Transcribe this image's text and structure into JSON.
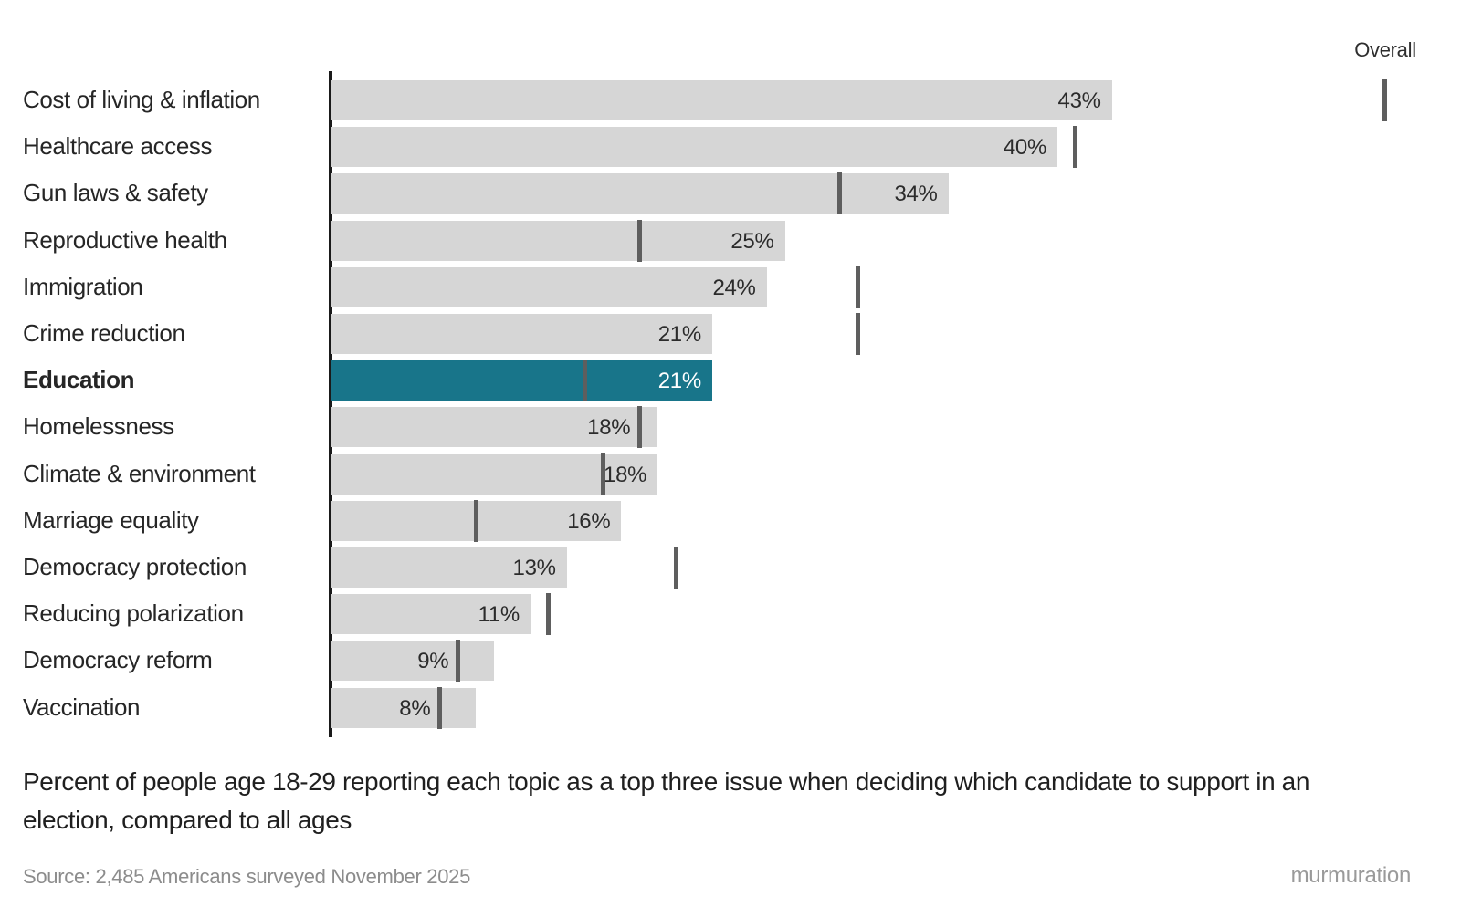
{
  "legend": {
    "overall_label": "Overall"
  },
  "caption": {
    "text": "Percent of people age 18-29 reporting each topic as a top three issue when deciding which candidate to support in an election, compared to all ages"
  },
  "source": {
    "text": "Source: 2,485 Americans surveyed November 2025"
  },
  "brand": {
    "text": "murmuration"
  },
  "colors": {
    "bar_gray": "#d6d6d6",
    "bar_highlight_teal": "#18758a",
    "tick_gray": "#5e5e5e",
    "axis_black": "#1a1a1a",
    "value_text": "#2b2b2b",
    "value_text_on_highlight": "#ffffff"
  },
  "chart_data": {
    "type": "bar",
    "orientation": "horizontal",
    "unit": "%",
    "title": "",
    "caption": "Percent of people age 18-29 reporting each topic as a top three issue when deciding which candidate to support in an election, compared to all ages",
    "xlabel": "",
    "ylabel": "",
    "xlim": [
      0,
      62
    ],
    "grid": false,
    "legend_position": "top-right",
    "highlighted_category": "Education",
    "categories": [
      "Cost of living & inflation",
      "Healthcare access",
      "Gun laws & safety",
      "Reproductive health",
      "Immigration",
      "Crime reduction",
      "Education",
      "Homelessness",
      "Climate & environment",
      "Marriage equality",
      "Democracy protection",
      "Reducing polarization",
      "Democracy reform",
      "Vaccination"
    ],
    "series": [
      {
        "name": "Age 18-29",
        "style": "bars",
        "values": [
          43,
          40,
          34,
          25,
          24,
          21,
          21,
          18,
          18,
          16,
          13,
          11,
          9,
          8
        ],
        "labels": [
          "43%",
          "40%",
          "34%",
          "25%",
          "24%",
          "21%",
          "21%",
          "18%",
          "18%",
          "16%",
          "13%",
          "11%",
          "9%",
          "8%"
        ]
      },
      {
        "name": "Overall",
        "style": "tick-markers",
        "values_estimated": [
          58,
          41,
          28,
          17,
          29,
          29,
          14,
          17,
          15,
          8,
          19,
          12,
          7,
          6
        ]
      }
    ]
  }
}
